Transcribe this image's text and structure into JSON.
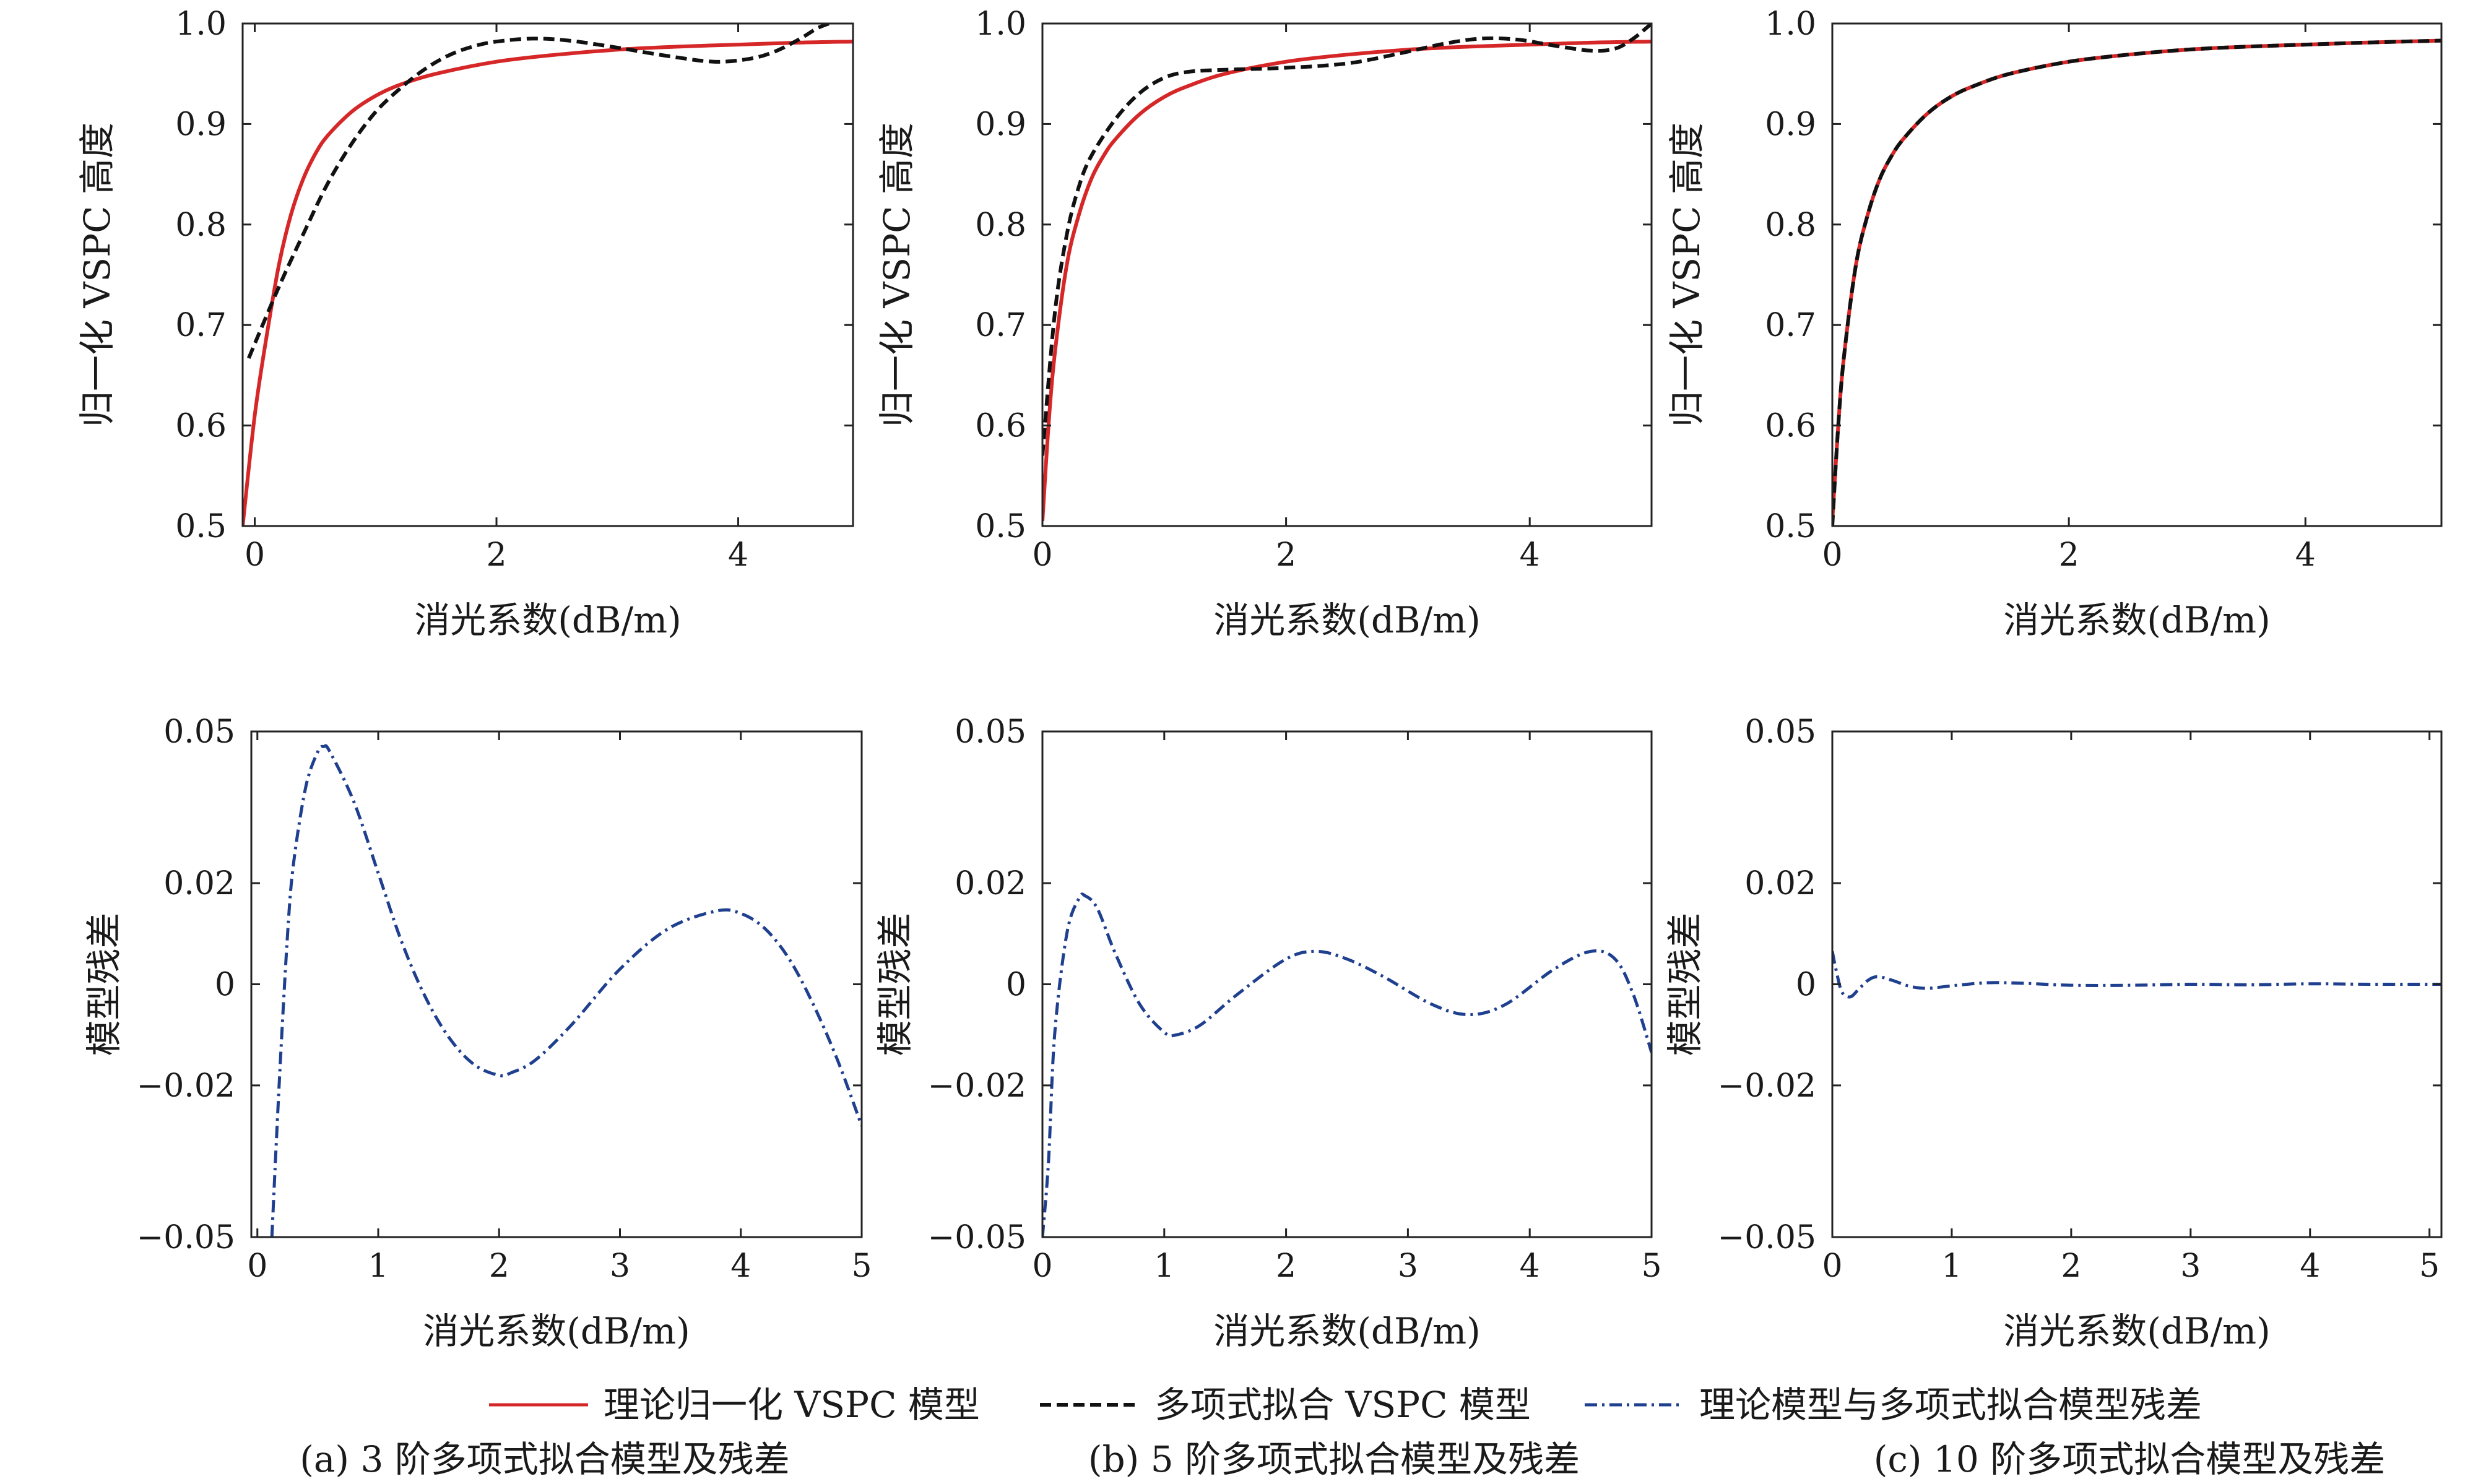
{
  "figure": {
    "legend": [
      {
        "label": "理论归一化 VSPC 模型",
        "color": "#d62728",
        "dash": "solid"
      },
      {
        "label": "多项式拟合 VSPC 模型",
        "color": "#111111",
        "dash": "dashed"
      },
      {
        "label": "理论模型与多项式拟合模型残差",
        "color": "#1f3f8f",
        "dash": "dashdot"
      }
    ],
    "captions": [
      "(a) 3 阶多项式拟合模型及残差",
      "(b) 5 阶多项式拟合模型及残差",
      "(c) 10 阶多项式拟合模型及残差"
    ],
    "colors": {
      "theory": "#d62728",
      "fit": "#111111",
      "residual": "#1f3f8f"
    }
  },
  "chart_data": [
    {
      "id": "a-top",
      "type": "line",
      "xlabel": "消光系数(dB/m)",
      "ylabel": "归一化 VSPC 高度",
      "xlim": [
        -0.1,
        4.95
      ],
      "ylim": [
        0.5,
        1.0
      ],
      "xticks": [
        0,
        2,
        4
      ],
      "xtick_labels": [
        "0",
        "2",
        "4"
      ],
      "yticks": [
        0.5,
        0.6,
        0.7,
        0.8,
        0.9,
        1.0
      ],
      "ytick_labels": [
        "0.5",
        "0.6",
        "0.7",
        "0.8",
        "0.9",
        "1.0"
      ],
      "series": [
        {
          "name": "理论归一化 VSPC 模型",
          "style": "theory",
          "x": [
            -0.1,
            0,
            0.1,
            0.2,
            0.3,
            0.4,
            0.5,
            0.6,
            0.8,
            1.0,
            1.2,
            1.5,
            2.0,
            2.5,
            3.0,
            3.5,
            4.0,
            4.5,
            4.95
          ],
          "y": [
            0.5,
            0.61,
            0.69,
            0.76,
            0.81,
            0.845,
            0.87,
            0.888,
            0.912,
            0.928,
            0.939,
            0.95,
            0.962,
            0.969,
            0.974,
            0.977,
            0.979,
            0.981,
            0.982
          ]
        },
        {
          "name": "多项式拟合 VSPC 模型",
          "style": "fit",
          "x": [
            -0.05,
            0.2,
            0.4,
            0.6,
            0.8,
            1.0,
            1.2,
            1.4,
            1.6,
            1.8,
            2.0,
            2.3,
            2.6,
            3.0,
            3.4,
            3.8,
            4.1,
            4.3,
            4.5,
            4.65,
            4.75
          ],
          "y": [
            0.667,
            0.738,
            0.79,
            0.84,
            0.88,
            0.912,
            0.935,
            0.954,
            0.968,
            0.977,
            0.982,
            0.985,
            0.983,
            0.976,
            0.968,
            0.962,
            0.965,
            0.972,
            0.984,
            0.995,
            1.0
          ]
        }
      ]
    },
    {
      "id": "b-top",
      "type": "line",
      "xlabel": "消光系数(dB/m)",
      "ylabel": "归一化 VSPC 高度",
      "xlim": [
        0,
        5.0
      ],
      "ylim": [
        0.5,
        1.0
      ],
      "xticks": [
        0,
        2,
        4
      ],
      "xtick_labels": [
        "0",
        "2",
        "4"
      ],
      "yticks": [
        0.5,
        0.6,
        0.7,
        0.8,
        0.9,
        1.0
      ],
      "ytick_labels": [
        "0.5",
        "0.6",
        "0.7",
        "0.8",
        "0.9",
        "1.0"
      ],
      "series": [
        {
          "name": "理论归一化 VSPC 模型",
          "style": "theory",
          "x": [
            0,
            0.05,
            0.1,
            0.2,
            0.3,
            0.4,
            0.5,
            0.6,
            0.8,
            1.0,
            1.2,
            1.5,
            2.0,
            2.5,
            3.0,
            3.5,
            4.0,
            4.5,
            5.0
          ],
          "y": [
            0.505,
            0.6,
            0.67,
            0.76,
            0.81,
            0.845,
            0.868,
            0.885,
            0.91,
            0.927,
            0.938,
            0.95,
            0.962,
            0.969,
            0.974,
            0.977,
            0.979,
            0.981,
            0.982
          ]
        },
        {
          "name": "多项式拟合 VSPC 模型",
          "style": "fit",
          "x": [
            0,
            0.1,
            0.2,
            0.3,
            0.4,
            0.6,
            0.8,
            1.0,
            1.2,
            1.5,
            1.8,
            2.0,
            2.3,
            2.6,
            3.0,
            3.3,
            3.6,
            3.9,
            4.2,
            4.5,
            4.7,
            4.85,
            5.0
          ],
          "y": [
            0.57,
            0.71,
            0.79,
            0.838,
            0.868,
            0.905,
            0.931,
            0.946,
            0.952,
            0.954,
            0.955,
            0.956,
            0.958,
            0.962,
            0.972,
            0.98,
            0.985,
            0.984,
            0.978,
            0.973,
            0.975,
            0.985,
            1.0
          ]
        }
      ]
    },
    {
      "id": "c-top",
      "type": "line",
      "xlabel": "消光系数(dB/m)",
      "ylabel": "归一化 VSPC 高度",
      "xlim": [
        0,
        5.15
      ],
      "ylim": [
        0.5,
        1.0
      ],
      "xticks": [
        0,
        2,
        4
      ],
      "xtick_labels": [
        "0",
        "2",
        "4"
      ],
      "yticks": [
        0.5,
        0.6,
        0.7,
        0.8,
        0.9,
        1.0
      ],
      "ytick_labels": [
        "0.5",
        "0.6",
        "0.7",
        "0.8",
        "0.9",
        "1.0"
      ],
      "series": [
        {
          "name": "理论归一化 VSPC 模型",
          "style": "theory",
          "x": [
            0,
            0.05,
            0.1,
            0.2,
            0.3,
            0.4,
            0.5,
            0.6,
            0.8,
            1.0,
            1.2,
            1.5,
            2.0,
            2.5,
            3.0,
            3.5,
            4.0,
            4.5,
            5.15
          ],
          "y": [
            0.505,
            0.6,
            0.67,
            0.76,
            0.81,
            0.845,
            0.868,
            0.885,
            0.91,
            0.927,
            0.938,
            0.95,
            0.962,
            0.969,
            0.974,
            0.977,
            0.979,
            0.981,
            0.983
          ]
        },
        {
          "name": "多项式拟合 VSPC 模型",
          "style": "fit",
          "x": [
            0,
            0.05,
            0.1,
            0.2,
            0.3,
            0.4,
            0.5,
            0.6,
            0.8,
            1.0,
            1.2,
            1.5,
            2.0,
            2.5,
            3.0,
            3.5,
            4.0,
            4.5,
            5.15
          ],
          "y": [
            0.5,
            0.6,
            0.67,
            0.76,
            0.81,
            0.845,
            0.868,
            0.885,
            0.91,
            0.927,
            0.938,
            0.95,
            0.962,
            0.969,
            0.974,
            0.977,
            0.979,
            0.981,
            0.983
          ]
        }
      ]
    },
    {
      "id": "a-bottom",
      "type": "line",
      "xlabel": "消光系数(dB/m)",
      "ylabel": "模型残差",
      "xlim": [
        -0.05,
        5.0
      ],
      "ylim": [
        -0.05,
        0.05
      ],
      "xticks": [
        0,
        1,
        2,
        3,
        4,
        5
      ],
      "xtick_labels": [
        "0",
        "1",
        "2",
        "3",
        "4",
        "5"
      ],
      "yticks": [
        -0.05,
        -0.02,
        0,
        0.02,
        0.05
      ],
      "ytick_labels": [
        "−0.05",
        "−0.02",
        "0",
        "0.02",
        "0.05"
      ],
      "series": [
        {
          "name": "理论模型与多项式拟合模型残差",
          "style": "residual",
          "x": [
            0.12,
            0.18,
            0.25,
            0.3,
            0.4,
            0.5,
            0.55,
            0.6,
            0.8,
            1.0,
            1.2,
            1.4,
            1.6,
            1.8,
            2.0,
            2.1,
            2.3,
            2.6,
            3.0,
            3.4,
            3.8,
            4.0,
            4.2,
            4.4,
            4.6,
            4.8,
            5.0
          ],
          "y": [
            -0.05,
            -0.02,
            0.01,
            0.024,
            0.039,
            0.046,
            0.047,
            0.046,
            0.036,
            0.022,
            0.008,
            -0.003,
            -0.011,
            -0.016,
            -0.018,
            -0.0175,
            -0.015,
            -0.008,
            0.003,
            0.011,
            0.0145,
            0.014,
            0.011,
            0.005,
            -0.004,
            -0.015,
            -0.028
          ]
        }
      ]
    },
    {
      "id": "b-bottom",
      "type": "line",
      "xlabel": "消光系数(dB/m)",
      "ylabel": "模型残差",
      "xlim": [
        0,
        5.0
      ],
      "ylim": [
        -0.05,
        0.05
      ],
      "xticks": [
        0,
        1,
        2,
        3,
        4,
        5
      ],
      "xtick_labels": [
        "0",
        "1",
        "2",
        "3",
        "4",
        "5"
      ],
      "yticks": [
        -0.05,
        -0.02,
        0,
        0.02,
        0.05
      ],
      "ytick_labels": [
        "−0.05",
        "−0.02",
        "0",
        "0.02",
        "0.05"
      ],
      "series": [
        {
          "name": "理论模型与多项式拟合模型残差",
          "style": "residual",
          "x": [
            0,
            0.05,
            0.1,
            0.2,
            0.3,
            0.35,
            0.45,
            0.6,
            0.8,
            1.0,
            1.1,
            1.3,
            1.6,
            2.0,
            2.25,
            2.5,
            2.8,
            3.2,
            3.5,
            3.8,
            4.2,
            4.5,
            4.7,
            4.85,
            5.0
          ],
          "y": [
            -0.05,
            -0.035,
            -0.01,
            0.01,
            0.017,
            0.0175,
            0.015,
            0.006,
            -0.004,
            -0.0095,
            -0.01,
            -0.008,
            -0.002,
            0.005,
            0.0065,
            0.005,
            0.0015,
            -0.004,
            -0.006,
            -0.004,
            0.003,
            0.0065,
            0.005,
            -0.002,
            -0.0135
          ]
        }
      ]
    },
    {
      "id": "c-bottom",
      "type": "line",
      "xlabel": "消光系数(dB/m)",
      "ylabel": "模型残差",
      "xlim": [
        0,
        5.1
      ],
      "ylim": [
        -0.05,
        0.05
      ],
      "xticks": [
        0,
        1,
        2,
        3,
        4,
        5
      ],
      "xtick_labels": [
        "0",
        "1",
        "2",
        "3",
        "4",
        "5"
      ],
      "yticks": [
        -0.05,
        -0.02,
        0,
        0.02,
        0.05
      ],
      "ytick_labels": [
        "−0.05",
        "−0.02",
        "0",
        "0.02",
        "0.05"
      ],
      "series": [
        {
          "name": "理论模型与多项式拟合模型残差",
          "style": "residual",
          "x": [
            0,
            0.03,
            0.08,
            0.15,
            0.22,
            0.3,
            0.38,
            0.5,
            0.65,
            0.8,
            1.0,
            1.3,
            1.6,
            2.0,
            2.5,
            3.0,
            3.5,
            4.0,
            4.5,
            5.1
          ],
          "y": [
            0.0065,
            0.003,
            -0.0015,
            -0.0025,
            -0.001,
            0.0008,
            0.0015,
            0.0008,
            -0.0004,
            -0.0008,
            -0.0003,
            0.0003,
            0.0002,
            -0.0002,
            -0.0002,
            0,
            -0.0001,
            0.0001,
            0,
            0
          ]
        }
      ]
    }
  ]
}
